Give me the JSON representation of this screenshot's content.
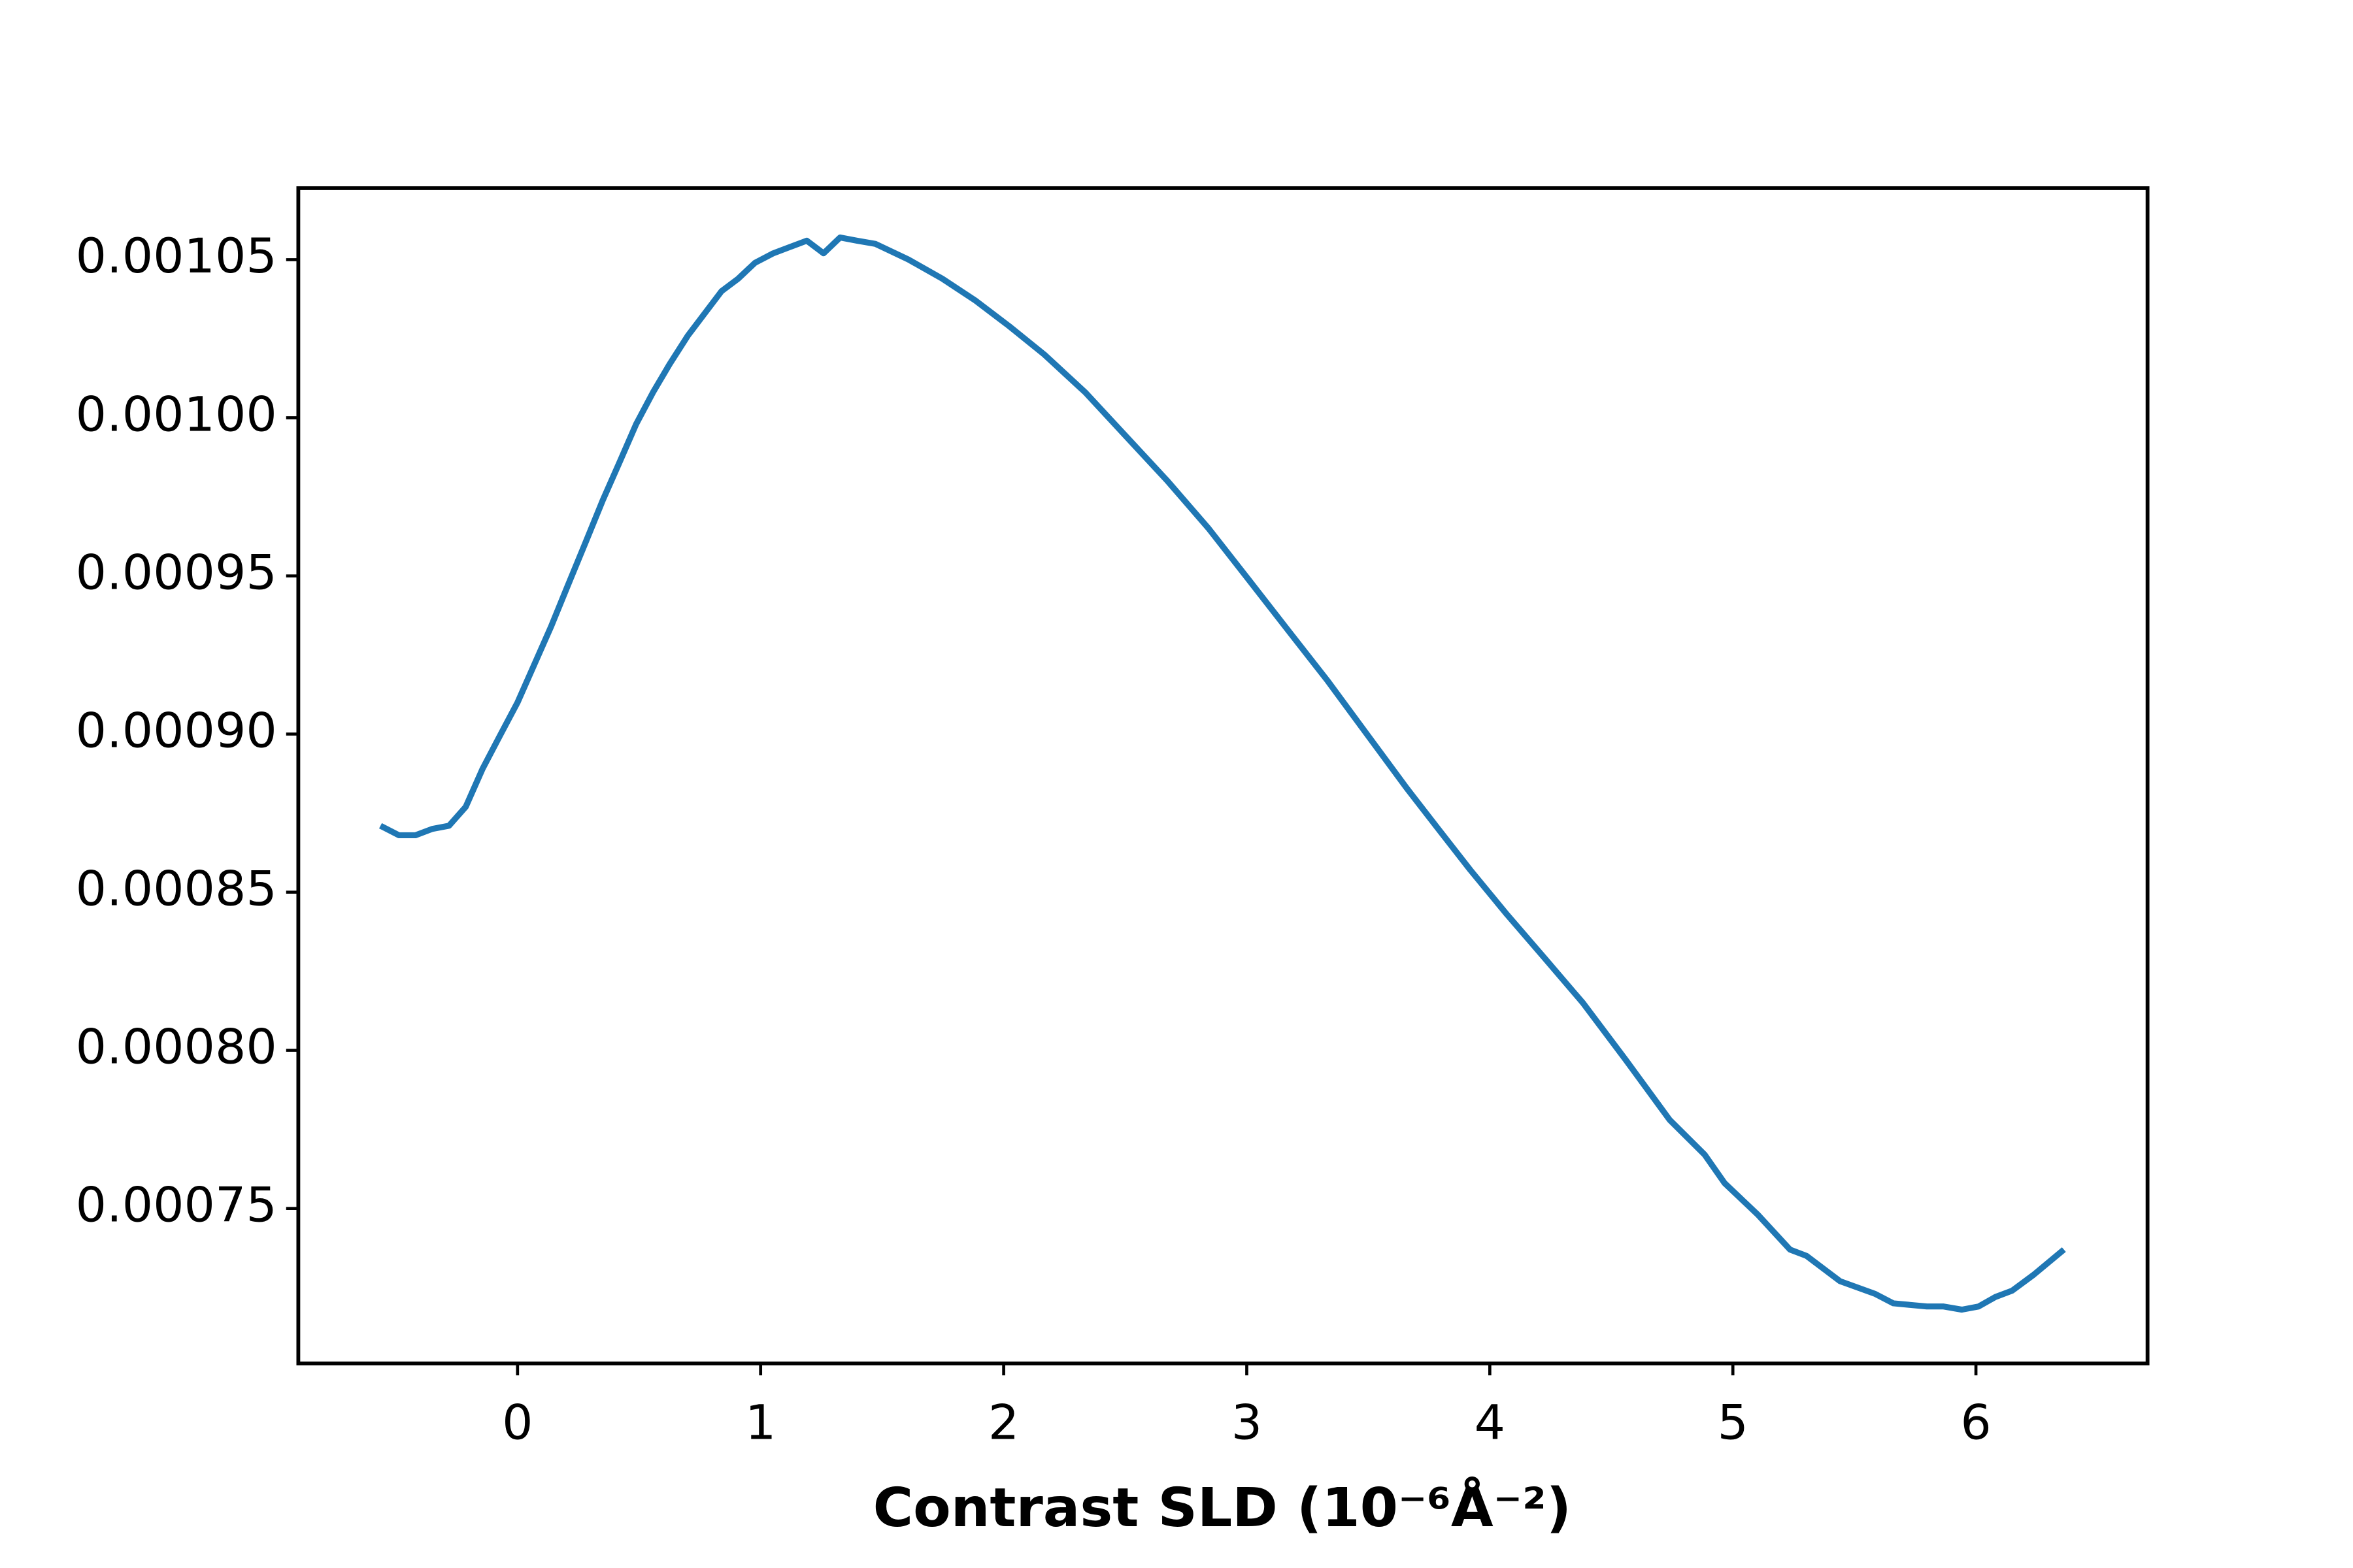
{
  "chart_data": {
    "type": "line",
    "xlabel": "Contrast SLD (10⁻⁶Å⁻²)",
    "x": [
      -0.564,
      -0.488,
      -0.42,
      -0.351,
      -0.282,
      -0.213,
      -0.144,
      -0.069,
      0,
      0.069,
      0.138,
      0.207,
      0.282,
      0.351,
      0.42,
      0.488,
      0.557,
      0.626,
      0.701,
      0.77,
      0.839,
      0.908,
      0.977,
      1.052,
      1.121,
      1.19,
      1.259,
      1.327,
      1.396,
      1.472,
      1.609,
      1.747,
      1.885,
      2.022,
      2.167,
      2.336,
      2.505,
      2.674,
      2.843,
      3.006,
      3.168,
      3.331,
      3.494,
      3.657,
      3.788,
      3.92,
      4.07,
      4.227,
      4.383,
      4.559,
      4.74,
      4.884,
      4.966,
      5.103,
      5.235,
      5.303,
      5.441,
      5.585,
      5.66,
      5.798,
      5.867,
      5.942,
      6.011,
      6.08,
      6.149,
      6.237,
      6.362
    ],
    "series": [
      {
        "color": "#1f77b4",
        "values": [
          0.000871,
          0.000868,
          0.000868,
          0.00087,
          0.000871,
          0.000877,
          0.000889,
          0.0009,
          0.00091,
          0.000922,
          0.000934,
          0.000947,
          0.000961,
          0.000974,
          0.000986,
          0.000998,
          0.001008,
          0.001017,
          0.001026,
          0.001033,
          0.00104,
          0.001044,
          0.001049,
          0.001052,
          0.001054,
          0.001056,
          0.001052,
          0.001057,
          0.001056,
          0.001055,
          0.00105,
          0.001044,
          0.001037,
          0.001029,
          0.00102,
          0.001008,
          0.000994,
          0.00098,
          0.000965,
          0.000949,
          0.000933,
          0.000917,
          0.0009,
          0.000883,
          0.00087,
          0.000857,
          0.000843,
          0.000829,
          0.000815,
          0.000797,
          0.000778,
          0.000767,
          0.000758,
          0.000748,
          0.000737,
          0.000735,
          0.000727,
          0.000723,
          0.00072,
          0.000719,
          0.000719,
          0.000718,
          0.000719,
          0.000722,
          0.000724,
          0.000729,
          0.000737
        ]
      }
    ],
    "xlim": [
      -0.902,
      6.706
    ],
    "ylim": [
      0.000701,
      0.0010726
    ],
    "xticks": [
      0,
      1,
      2,
      3,
      4,
      5,
      6
    ],
    "yticks": [
      0.00075,
      {
        "value": 0.0008,
        "label": "0.00080"
      },
      0.00085,
      {
        "value": 0.0009,
        "label": "0.00090"
      },
      0.00095,
      {
        "value": 0.001,
        "label": "0.00100"
      },
      0.00105
    ]
  }
}
